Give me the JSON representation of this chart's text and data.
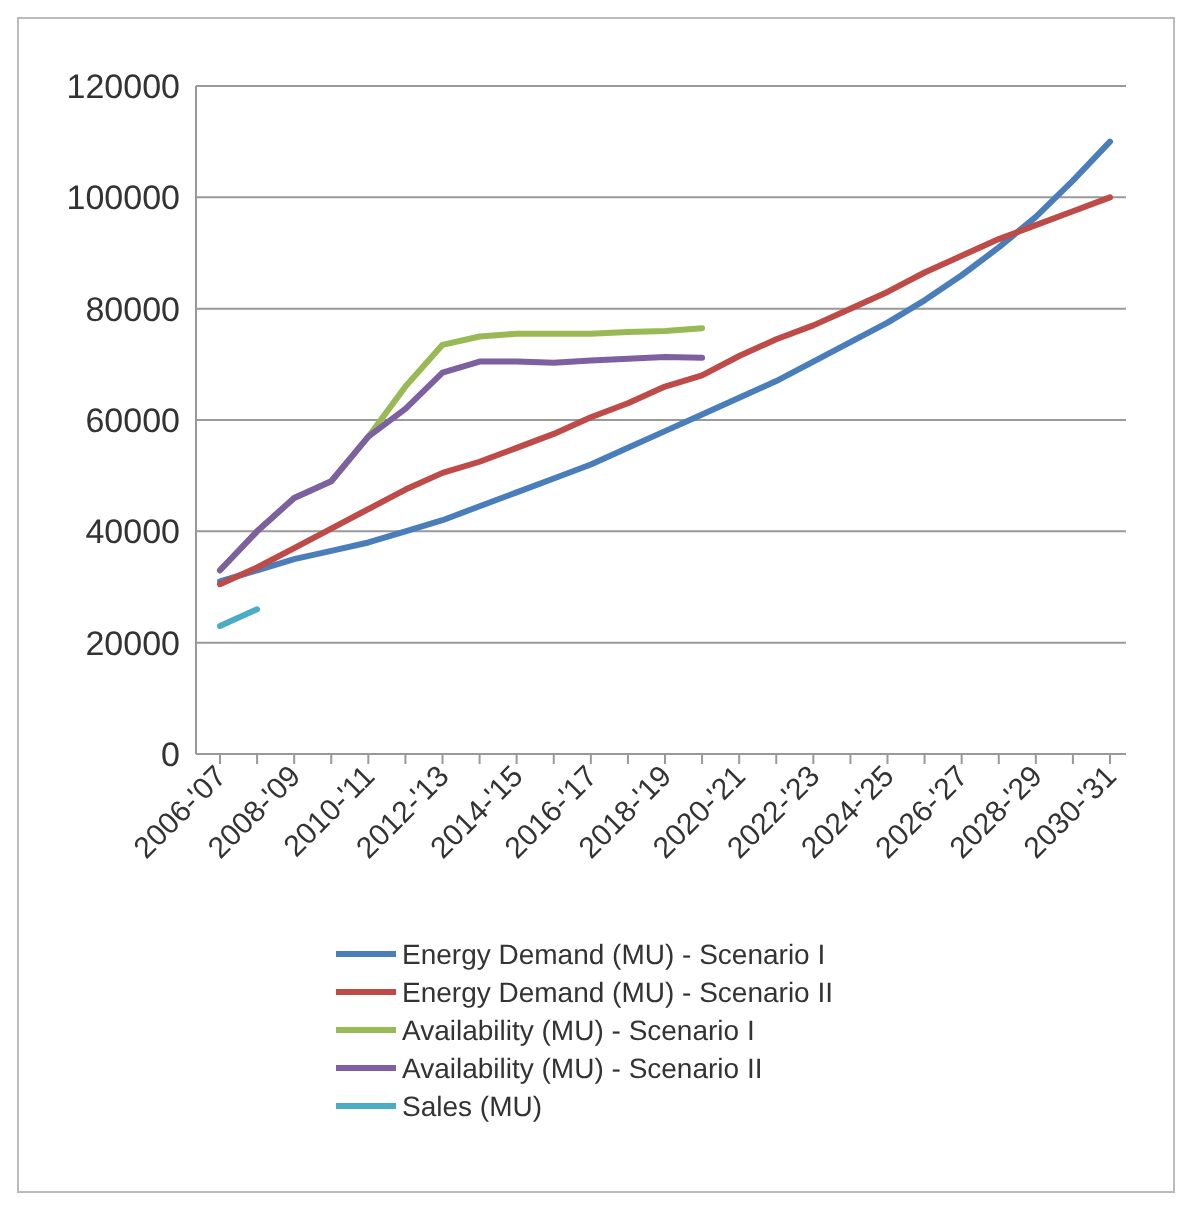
{
  "chart_data": {
    "type": "line",
    "categories": [
      "2006-'07",
      null,
      "2008-'09",
      null,
      "2010-'11",
      null,
      "2012-'13",
      null,
      "2014-'15",
      null,
      "2016-'17",
      null,
      "2018-'19",
      null,
      "2020-'21",
      null,
      "2022-'23",
      null,
      "2024-'25",
      null,
      "2026-'27",
      null,
      "2028-'29",
      null,
      "2030-'31"
    ],
    "series": [
      {
        "name": "Energy Demand (MU) - Scenario I",
        "color": "#4a7ebb",
        "values": [
          31000,
          33000,
          35000,
          36500,
          38000,
          40000,
          42000,
          44500,
          47000,
          49500,
          52000,
          55000,
          58000,
          61000,
          64000,
          67000,
          70500,
          74000,
          77500,
          81500,
          86000,
          91000,
          96500,
          103000,
          110000
        ]
      },
      {
        "name": "Energy Demand (MU) - Scenario II",
        "color": "#be4b48",
        "values": [
          30500,
          33500,
          37000,
          40500,
          44000,
          47500,
          50500,
          52500,
          55000,
          57500,
          60500,
          63000,
          66000,
          68000,
          71500,
          74500,
          77000,
          80000,
          83000,
          86500,
          89500,
          92500,
          95000,
          97500,
          100000
        ]
      },
      {
        "name": "Availability (MU) - Scenario I",
        "color": "#98b954",
        "values": [
          33000,
          40000,
          46000,
          49000,
          57000,
          66000,
          73500,
          75000,
          75500,
          75500,
          75500,
          75800,
          76000,
          76500,
          null,
          null,
          null,
          null,
          null,
          null,
          null,
          null,
          null,
          null,
          null
        ]
      },
      {
        "name": "Availability (MU) - Scenario II",
        "color": "#7d60a0",
        "values": [
          33000,
          40000,
          46000,
          49000,
          57000,
          62000,
          68500,
          70500,
          70500,
          70300,
          70700,
          71000,
          71300,
          71200,
          null,
          null,
          null,
          null,
          null,
          null,
          null,
          null,
          null,
          null,
          null
        ]
      },
      {
        "name": "Sales (MU)",
        "color": "#4bacc6",
        "values": [
          23000,
          26000,
          null,
          null,
          null,
          null,
          null,
          null,
          null,
          null,
          null,
          null,
          null,
          null,
          null,
          null,
          null,
          null,
          null,
          null,
          null,
          null,
          null,
          null,
          null
        ]
      }
    ],
    "ylim": [
      0,
      120000
    ],
    "yticks": [
      0,
      20000,
      40000,
      60000,
      80000,
      100000,
      120000
    ],
    "grid": "y",
    "legend": "bottom",
    "marker": "none",
    "line_style": "solid"
  }
}
